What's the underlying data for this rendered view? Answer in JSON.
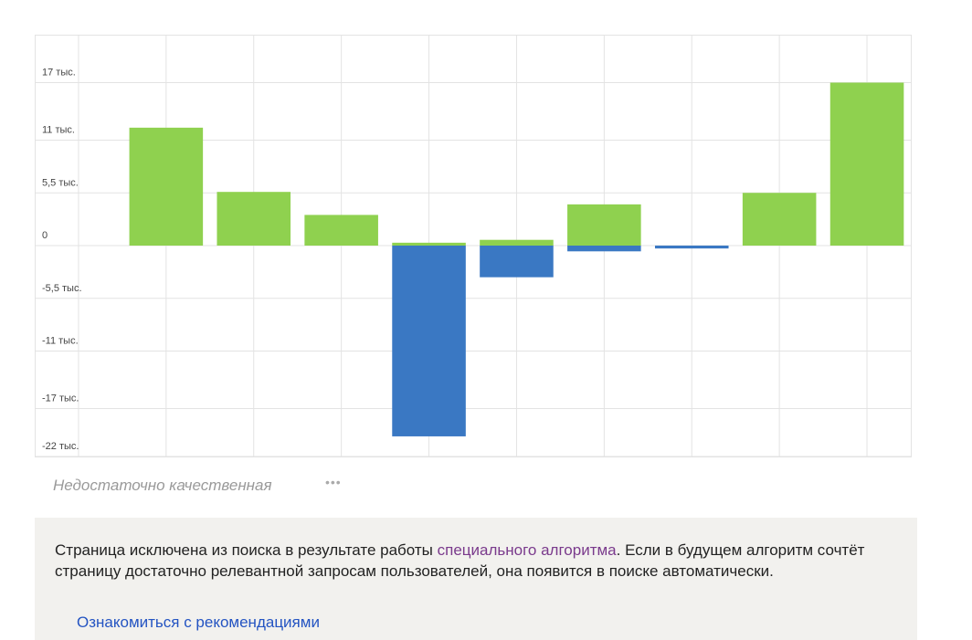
{
  "chart_data": {
    "type": "bar",
    "categories": [
      null,
      null,
      null,
      null,
      null,
      null,
      null,
      null,
      null,
      null
    ],
    "series": [
      {
        "color": "#8fd14f",
        "values": [
          null,
          12300,
          5600,
          3200,
          300,
          600,
          4300,
          null,
          5500,
          17000
        ]
      },
      {
        "color": "#3a78c3",
        "values": [
          null,
          null,
          null,
          null,
          -19900,
          -3300,
          -600,
          -300,
          null,
          null
        ]
      }
    ],
    "ylim": [
      -22000,
      22000
    ],
    "yticks": [
      {
        "value": 17000,
        "label": "17 тыс."
      },
      {
        "value": 11000,
        "label": "11 тыс."
      },
      {
        "value": 5500,
        "label": "5,5 тыс."
      },
      0,
      {
        "value": -5500,
        "label": "-5,5 тыс."
      },
      {
        "value": -11000,
        "label": "-11 тыс."
      },
      {
        "value": -17000,
        "label": "-17 тыс."
      },
      {
        "value": -22000,
        "label": "-22 тыс."
      }
    ],
    "grid": true
  },
  "status": "Недостаточно качественная",
  "notice": {
    "before": "Страница исключена из поиска в результате работы ",
    "link": "специального алгоритма",
    "after": ". Если в будущем алгоритм сочтёт страницу достаточно релевантной запросам пользователей, она появится в поиске автоматически."
  },
  "recommendations_link": "Ознакомиться с рекомендациями"
}
